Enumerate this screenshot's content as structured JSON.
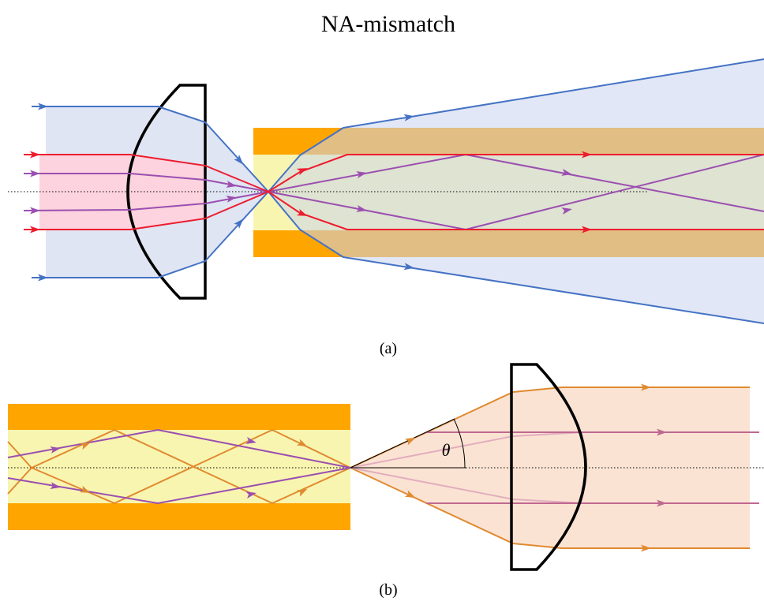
{
  "title": "NA-mismatch",
  "panels": [
    {
      "label": "(a)"
    },
    {
      "label": "(b)",
      "angle_label": "θ"
    }
  ]
}
